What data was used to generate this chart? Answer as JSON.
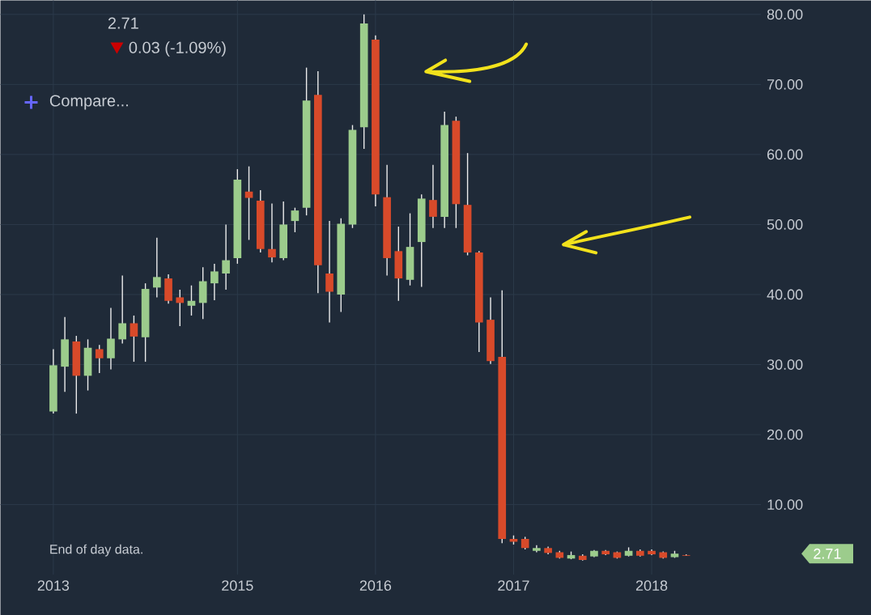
{
  "chart_data": {
    "type": "candlestick",
    "categories": [
      "2013",
      null,
      null,
      null,
      null,
      null,
      null,
      null,
      null,
      null,
      null,
      null,
      null,
      null,
      null,
      null,
      "2015",
      null,
      null,
      null,
      null,
      null,
      null,
      null,
      null,
      null,
      null,
      null,
      "2016",
      null,
      null,
      null,
      null,
      null,
      null,
      null,
      null,
      null,
      null,
      null,
      "2017",
      null,
      null,
      null,
      null,
      null,
      null,
      null,
      null,
      null,
      null,
      null,
      "2018",
      null,
      null,
      null
    ],
    "ohlc": [
      [
        23.3,
        32.2,
        23.0,
        29.9
      ],
      [
        29.7,
        36.8,
        26.1,
        33.6
      ],
      [
        33.3,
        34.1,
        23.0,
        28.4
      ],
      [
        28.4,
        33.6,
        26.3,
        32.4
      ],
      [
        32.2,
        32.8,
        28.8,
        30.9
      ],
      [
        30.9,
        38.1,
        29.3,
        33.7
      ],
      [
        33.6,
        42.7,
        33.0,
        35.9
      ],
      [
        35.9,
        37.0,
        30.4,
        34.0
      ],
      [
        33.9,
        41.6,
        30.4,
        40.8
      ],
      [
        41.0,
        48.1,
        39.6,
        42.5
      ],
      [
        42.3,
        42.9,
        38.7,
        39.1
      ],
      [
        39.6,
        40.7,
        35.5,
        38.8
      ],
      [
        38.4,
        41.3,
        37.0,
        39.1
      ],
      [
        38.8,
        43.9,
        36.5,
        41.9
      ],
      [
        41.6,
        44.4,
        39.2,
        43.3
      ],
      [
        43.0,
        50.0,
        40.7,
        44.9
      ],
      [
        45.2,
        57.9,
        44.4,
        56.4
      ],
      [
        54.7,
        58.3,
        47.8,
        53.8
      ],
      [
        53.4,
        54.9,
        46.0,
        46.5
      ],
      [
        46.5,
        53.0,
        44.6,
        45.3
      ],
      [
        45.2,
        53.3,
        44.9,
        50.0
      ],
      [
        50.5,
        52.4,
        48.9,
        52.0
      ],
      [
        52.4,
        72.4,
        51.3,
        67.7
      ],
      [
        68.5,
        71.9,
        40.2,
        44.2
      ],
      [
        43.0,
        50.5,
        36.0,
        40.4
      ],
      [
        40.0,
        50.9,
        37.5,
        50.1
      ],
      [
        50.0,
        64.2,
        49.5,
        63.5
      ],
      [
        63.9,
        80.0,
        60.8,
        78.7
      ],
      [
        76.4,
        77.0,
        52.6,
        54.3
      ],
      [
        53.9,
        58.5,
        42.7,
        45.2
      ],
      [
        46.2,
        49.7,
        39.1,
        42.3
      ],
      [
        42.1,
        51.6,
        41.3,
        46.8
      ],
      [
        47.5,
        54.3,
        41.1,
        53.7
      ],
      [
        53.5,
        58.5,
        49.5,
        51.1
      ],
      [
        51.1,
        66.1,
        49.5,
        64.2
      ],
      [
        64.8,
        65.4,
        49.5,
        52.9
      ],
      [
        52.8,
        60.2,
        45.6,
        46.0
      ],
      [
        46.0,
        46.2,
        31.8,
        36.0
      ],
      [
        36.4,
        39.6,
        30.1,
        30.5
      ],
      [
        31.1,
        40.6,
        4.5,
        5.1
      ],
      [
        5.1,
        5.6,
        4.3,
        4.7
      ],
      [
        5.1,
        5.4,
        3.6,
        3.8
      ],
      [
        3.4,
        4.2,
        3.2,
        3.8
      ],
      [
        3.8,
        4.0,
        2.9,
        3.1
      ],
      [
        3.2,
        3.4,
        2.3,
        2.4
      ],
      [
        2.3,
        3.3,
        2.2,
        2.8
      ],
      [
        2.7,
        2.9,
        2.0,
        2.1
      ],
      [
        2.6,
        3.5,
        2.5,
        3.4
      ],
      [
        3.4,
        3.5,
        2.8,
        2.9
      ],
      [
        3.2,
        3.3,
        2.3,
        2.4
      ],
      [
        2.7,
        3.9,
        2.6,
        3.4
      ],
      [
        3.4,
        3.6,
        2.6,
        2.7
      ],
      [
        3.4,
        3.6,
        2.8,
        2.9
      ],
      [
        3.2,
        3.3,
        2.3,
        2.4
      ],
      [
        2.5,
        3.4,
        2.4,
        3.0
      ],
      [
        2.8,
        2.9,
        2.7,
        2.7
      ]
    ],
    "ylim": [
      0,
      82
    ],
    "yticks": [
      {
        "value": 10,
        "label": "10.00"
      },
      {
        "value": 20,
        "label": "20.00"
      },
      {
        "value": 30,
        "label": "30.00"
      },
      {
        "value": 40,
        "label": "40.00"
      },
      {
        "value": 50,
        "label": "50.00"
      },
      {
        "value": 60,
        "label": "60.00"
      },
      {
        "value": 70,
        "label": "70.00"
      },
      {
        "value": 80,
        "label": "80.00"
      }
    ],
    "grid": true,
    "annotations": [
      "2.71",
      "0.03 (-1.09%)",
      "Compare...",
      "End of day data.",
      "2.71"
    ]
  }
}
